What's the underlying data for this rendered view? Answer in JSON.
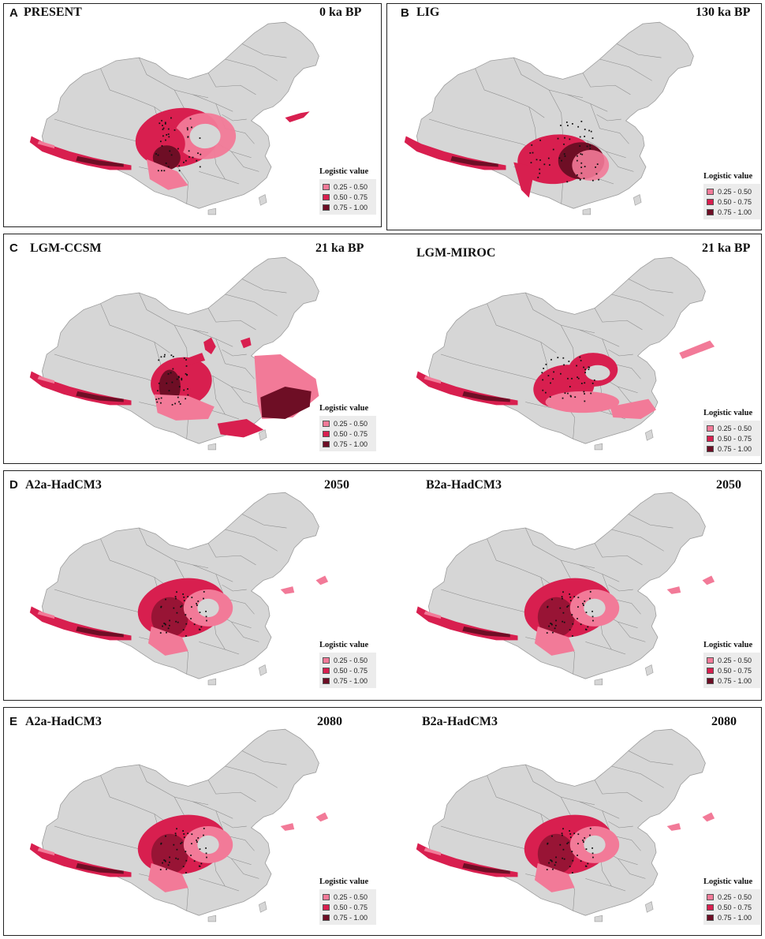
{
  "colors": {
    "land": "#d6d6d6",
    "border": "#8a8a8a",
    "low": "#f27a98",
    "mid": "#d81f4f",
    "high": "#6e0e25",
    "points": "#111111"
  },
  "legend": {
    "title": "Logistic value",
    "classes": [
      {
        "label": "0.25 - 0.50",
        "color": "#f27a98"
      },
      {
        "label": "0.50 - 0.75",
        "color": "#d81f4f"
      },
      {
        "label": "0.75 - 1.00",
        "color": "#6e0e25"
      }
    ]
  },
  "panels": [
    {
      "letter": "A",
      "maps": [
        {
          "title": "PRESENT",
          "time": "0 ka BP",
          "variant": "present"
        }
      ]
    },
    {
      "letter": "B",
      "maps": [
        {
          "title": "LIG",
          "time": "130 ka BP",
          "variant": "lig"
        }
      ]
    },
    {
      "letter": "C",
      "maps": [
        {
          "title": "LGM-CCSM",
          "time": "21 ka BP",
          "variant": "ccsm"
        },
        {
          "title": "LGM-MIROC",
          "time": "21 ka BP",
          "variant": "miroc"
        }
      ]
    },
    {
      "letter": "D",
      "maps": [
        {
          "title": "A2a-HadCM3",
          "time": "2050",
          "variant": "future"
        },
        {
          "title": "B2a-HadCM3",
          "time": "2050",
          "variant": "future"
        }
      ]
    },
    {
      "letter": "E",
      "maps": [
        {
          "title": "A2a-HadCM3",
          "time": "2080",
          "variant": "future"
        },
        {
          "title": "B2a-HadCM3",
          "time": "2080",
          "variant": "future"
        }
      ]
    }
  ]
}
